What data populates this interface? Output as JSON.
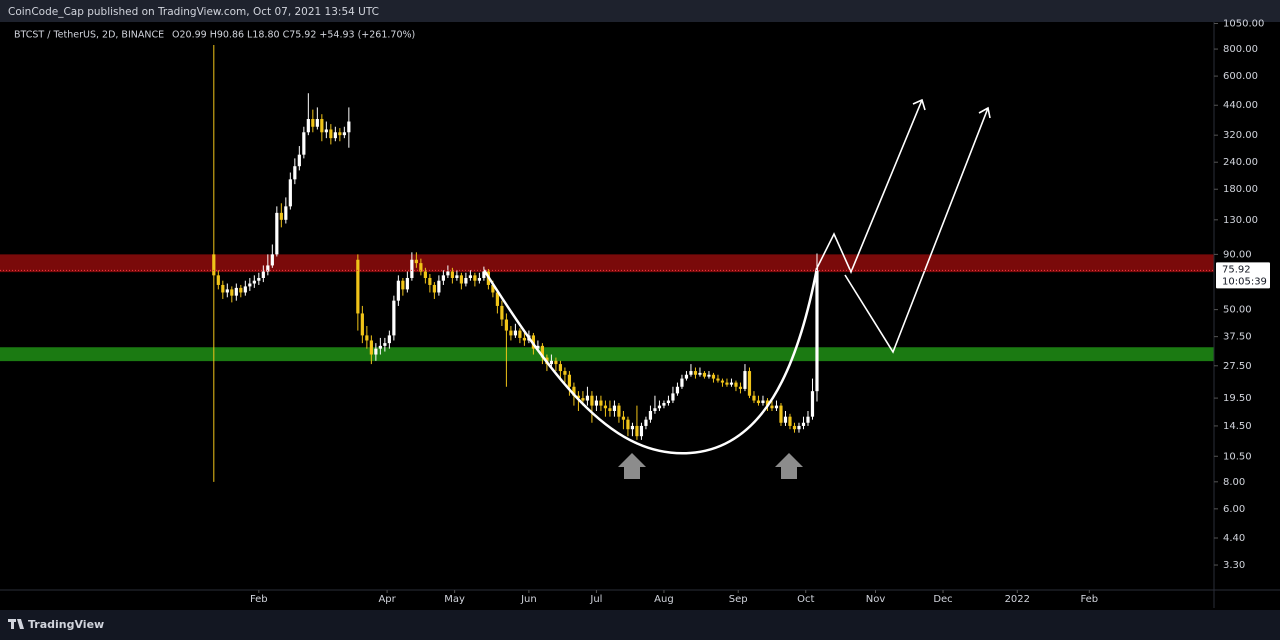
{
  "header": {
    "text": "CoinCode_Cap published on TradingView.com, Oct 07, 2021 13:54 UTC"
  },
  "chart_data": {
    "type": "candlestick",
    "title": "BTCST / TetherUS, 2D, BINANCE",
    "legend_values": "O20.99 H90.86 L18.80 C75.92 +54.93 (+261.70%)",
    "open": [
      90,
      72,
      65,
      60,
      62,
      58,
      63,
      60,
      64,
      66,
      68,
      70,
      75,
      80,
      90,
      140,
      130,
      150,
      200,
      230,
      260,
      330,
      380,
      350,
      380,
      330,
      340,
      310,
      330,
      320,
      330,
      null,
      85,
      48,
      38,
      36,
      31,
      33,
      34,
      35,
      38,
      55,
      68,
      62,
      70,
      85,
      82,
      75,
      70,
      65,
      60,
      68,
      72,
      75,
      70,
      72,
      66,
      70,
      72,
      68,
      70,
      75,
      65,
      60,
      52,
      45,
      40,
      38,
      40,
      37,
      36,
      38,
      33,
      34,
      30,
      28,
      29,
      28,
      26,
      25,
      22,
      20,
      19.5,
      19,
      20,
      18,
      19,
      18,
      17.5,
      17,
      18,
      16,
      15.5,
      14,
      14.5,
      13,
      14.5,
      15.5,
      17,
      17.5,
      18,
      18.5,
      19,
      20.5,
      22,
      24,
      25,
      26,
      25,
      25.5,
      24.5,
      25,
      24,
      23.5,
      23,
      22.5,
      23,
      22,
      21.5,
      26,
      20,
      19,
      18.5,
      19,
      18,
      17.5,
      18,
      15,
      16,
      14.5,
      14,
      14.5,
      15,
      16,
      20.99
    ],
    "high": [
      835,
      76,
      68,
      66,
      64,
      66,
      65,
      68,
      70,
      72,
      74,
      80,
      90,
      100,
      150,
      155,
      165,
      215,
      250,
      285,
      350,
      500,
      420,
      430,
      400,
      370,
      360,
      350,
      345,
      350,
      430,
      null,
      90,
      52,
      42,
      38,
      35,
      37,
      37,
      40,
      58,
      72,
      70,
      75,
      92,
      92,
      86,
      78,
      73,
      67,
      72,
      76,
      80,
      78,
      76,
      74,
      74,
      76,
      74,
      74,
      79,
      77,
      68,
      62,
      55,
      48,
      42,
      43,
      41,
      39,
      40,
      39,
      36,
      35,
      31,
      31,
      30,
      29,
      27,
      26,
      23,
      21,
      21,
      22,
      21,
      20,
      20,
      19,
      19,
      19,
      18.5,
      17,
      16,
      15,
      18,
      15,
      16,
      18,
      20,
      19,
      19,
      20,
      22,
      23,
      25,
      26,
      28,
      27,
      27,
      26,
      26,
      25.5,
      25,
      24,
      24,
      24,
      23.5,
      23,
      28,
      27,
      21,
      20,
      20,
      19.5,
      19,
      19,
      18.5,
      17,
      16.5,
      15,
      15,
      16,
      17,
      24,
      90.86
    ],
    "low": [
      8,
      62,
      56,
      57,
      54,
      55,
      57,
      58,
      61,
      63,
      65,
      67,
      72,
      78,
      88,
      120,
      125,
      145,
      190,
      220,
      250,
      320,
      330,
      340,
      300,
      310,
      290,
      300,
      300,
      310,
      280,
      null,
      40,
      35,
      33,
      28,
      29,
      31,
      32,
      33,
      36,
      52,
      58,
      60,
      68,
      78,
      72,
      66,
      60,
      56,
      58,
      65,
      70,
      66,
      68,
      62,
      64,
      68,
      64,
      66,
      68,
      62,
      57,
      48,
      42,
      22,
      36,
      37,
      35,
      34,
      35,
      31,
      32,
      28,
      26,
      27,
      26,
      24,
      23,
      20,
      18,
      17,
      18,
      18,
      15,
      17,
      17,
      16,
      16,
      16,
      15,
      14,
      13,
      13,
      12.5,
      12.5,
      14,
      15,
      16.5,
      17,
      17.5,
      18,
      18.5,
      20,
      21.5,
      23.5,
      24.5,
      24,
      24.5,
      24,
      24,
      23,
      23,
      22,
      22,
      22,
      21,
      20.5,
      21,
      19.5,
      18.5,
      18,
      18,
      17,
      17,
      17,
      14.5,
      14.5,
      14,
      13.5,
      13.5,
      14,
      14.5,
      15.5,
      18.8
    ],
    "close": [
      72,
      65,
      60,
      62,
      58,
      63,
      60,
      64,
      66,
      68,
      70,
      75,
      80,
      90,
      140,
      130,
      150,
      200,
      230,
      260,
      330,
      380,
      350,
      380,
      330,
      340,
      310,
      330,
      320,
      330,
      370,
      null,
      48,
      38,
      36,
      31,
      33,
      34,
      35,
      38,
      55,
      68,
      62,
      70,
      85,
      82,
      75,
      70,
      65,
      60,
      68,
      72,
      75,
      70,
      72,
      66,
      70,
      72,
      68,
      70,
      75,
      65,
      60,
      52,
      45,
      40,
      38,
      40,
      37,
      36,
      38,
      33,
      34,
      30,
      28,
      29,
      28,
      26,
      25,
      22,
      20,
      19.5,
      19,
      20,
      18,
      19,
      18,
      17.5,
      17,
      18,
      16,
      15.5,
      14,
      14.5,
      13,
      14.5,
      15.5,
      17,
      17.5,
      18,
      18.5,
      19,
      20.5,
      22,
      24,
      25,
      26,
      25,
      25.5,
      24.5,
      25,
      24,
      23.5,
      23,
      22.5,
      23,
      22,
      21.5,
      26,
      20,
      19,
      18.5,
      19,
      18,
      17.5,
      18,
      15,
      16,
      14.5,
      14,
      14.5,
      15,
      16,
      20.99,
      75.92
    ],
    "up_color": "#ffffff",
    "down_color": "#f0c419",
    "log_scale": true,
    "xlim": [
      -47.5,
      222.2
    ],
    "ylim": [
      2.53,
      1067
    ],
    "xticks": [
      {
        "value": 10,
        "label": "Feb"
      },
      {
        "value": 38.5,
        "label": "Apr"
      },
      {
        "value": 53.5,
        "label": "May"
      },
      {
        "value": 70,
        "label": "Jun"
      },
      {
        "value": 85,
        "label": "Jul"
      },
      {
        "value": 100,
        "label": "Aug"
      },
      {
        "value": 116.5,
        "label": "Sep"
      },
      {
        "value": 131.5,
        "label": "Oct"
      },
      {
        "value": 147,
        "label": "Nov"
      },
      {
        "value": 162,
        "label": "Dec"
      },
      {
        "value": 178.5,
        "label": "2022"
      },
      {
        "value": 194.5,
        "label": "Feb"
      }
    ],
    "yticks": [
      {
        "value": 1050,
        "label": "1050.00"
      },
      {
        "value": 800,
        "label": "800.00"
      },
      {
        "value": 600,
        "label": "600.00"
      },
      {
        "value": 440,
        "label": "440.00"
      },
      {
        "value": 320,
        "label": "320.00"
      },
      {
        "value": 240,
        "label": "240.00"
      },
      {
        "value": 180,
        "label": "180.00"
      },
      {
        "value": 130,
        "label": "130.00"
      },
      {
        "value": 90,
        "label": "90.00"
      },
      {
        "value": 50,
        "label": "50.00"
      },
      {
        "value": 37.5,
        "label": "37.50"
      },
      {
        "value": 27.5,
        "label": "27.50"
      },
      {
        "value": 19.5,
        "label": "19.50"
      },
      {
        "value": 14.5,
        "label": "14.50"
      },
      {
        "value": 10.5,
        "label": "10.50"
      },
      {
        "value": 8,
        "label": "8.00"
      },
      {
        "value": 6,
        "label": "6.00"
      },
      {
        "value": 4.4,
        "label": "4.40"
      },
      {
        "value": 3.3,
        "label": "3.30"
      }
    ],
    "zones": [
      {
        "from": 74.5,
        "to": 90,
        "color": "#7a0a0a"
      },
      {
        "from": 28.9,
        "to": 33.5,
        "color": "#1b7a12"
      }
    ],
    "last_price_color": "#f23645",
    "countdown": "10:05:39"
  },
  "footer": {
    "brand": "TradingView"
  }
}
